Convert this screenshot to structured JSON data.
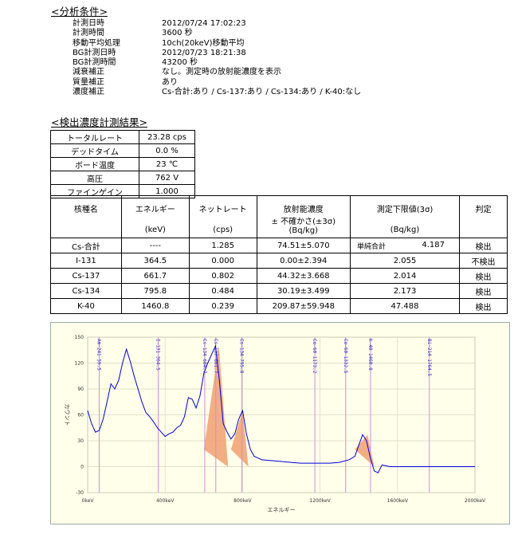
{
  "conditions": {
    "title": "<分析条件>",
    "rows": [
      {
        "label": "計測日時",
        "value": "2012/07/24 17:02:23"
      },
      {
        "label": "計測時間",
        "value": "3600 秒"
      },
      {
        "label": "移動平均処理",
        "value": "10ch(20keV)移動平均"
      },
      {
        "label": "BG計測日時",
        "value": "2012/07/23 18:21:38"
      },
      {
        "label": "BG計測時間",
        "value": "43200 秒"
      },
      {
        "label": "減衰補正",
        "value": "なし。測定時の放射能濃度を表示"
      },
      {
        "label": "質量補正",
        "value": "あり"
      },
      {
        "label": "濃度補正",
        "value": "Cs-合計:あり / Cs-137:あり / Cs-134:あり / K-40:なし"
      }
    ]
  },
  "results": {
    "title": "<検出濃度計測結果>",
    "status": [
      {
        "label": "トータルレート",
        "value": "23.28 cps"
      },
      {
        "label": "デッドタイム",
        "value": "0.0 %"
      },
      {
        "label": "ボード温度",
        "value": "23 ℃"
      },
      {
        "label": "高圧",
        "value": "762 V"
      },
      {
        "label": "ファインゲイン",
        "value": "1.000"
      }
    ],
    "headers": {
      "nuclide": "核種名",
      "energy": "エネルギー",
      "energy_unit": "(keV)",
      "netrate": "ネットレート",
      "netrate_unit": "(cps)",
      "activity": "放射能濃度",
      "activity_sub": "± 不確かさ(±3σ)",
      "activity_unit": "(Bq/kg)",
      "lld": "測定下限値(3σ)",
      "lld_unit": "(Bq/kg)",
      "judge": "判定"
    },
    "rows": [
      {
        "nuclide": "Cs-合計",
        "energy": "----",
        "netrate": "1.285",
        "activity": "74.51±5.070",
        "lld_prefix": "単純合計",
        "lld": "4.187",
        "judge": "検出"
      },
      {
        "nuclide": "I-131",
        "energy": "364.5",
        "netrate": "0.000",
        "activity": "0.00±2.394",
        "lld_prefix": "",
        "lld": "2.055",
        "judge": "不検出"
      },
      {
        "nuclide": "Cs-137",
        "energy": "661.7",
        "netrate": "0.802",
        "activity": "44.32±3.668",
        "lld_prefix": "",
        "lld": "2.014",
        "judge": "検出"
      },
      {
        "nuclide": "Cs-134",
        "energy": "795.8",
        "netrate": "0.484",
        "activity": "30.19±3.499",
        "lld_prefix": "",
        "lld": "2.173",
        "judge": "検出"
      },
      {
        "nuclide": "K-40",
        "energy": "1460.8",
        "netrate": "0.239",
        "activity": "209.87±59.948",
        "lld_prefix": "",
        "lld": "47.488",
        "judge": "検出"
      }
    ]
  },
  "chart_data": {
    "type": "line",
    "xlabel": "エネルギー",
    "ylabel": "カウント",
    "xlim": [
      0,
      2000
    ],
    "ylim": [
      -30,
      150
    ],
    "x_ticks": [
      "0keV",
      "400keV",
      "800keV",
      "1200keV",
      "1600keV",
      "2000keV"
    ],
    "y_ticks": [
      "150",
      "120",
      "90",
      "60",
      "30",
      "0",
      "-30"
    ],
    "markers": [
      {
        "label": "Am-241",
        "energy": 59.5
      },
      {
        "label": "I-131",
        "energy": 364.5
      },
      {
        "label": "Cs-134",
        "energy": 604.7
      },
      {
        "label": "Cs-137",
        "energy": 661.7
      },
      {
        "label": "Cs-134",
        "energy": 795.8
      },
      {
        "label": "Co-60",
        "energy": 1173.2
      },
      {
        "label": "Co-60",
        "energy": 1332.5
      },
      {
        "label": "K-40",
        "energy": 1460.8
      },
      {
        "label": "Bi-214",
        "energy": 1764.5
      }
    ],
    "x": [
      0,
      20,
      40,
      60,
      80,
      100,
      120,
      140,
      160,
      180,
      200,
      220,
      240,
      260,
      280,
      300,
      320,
      340,
      360,
      380,
      400,
      420,
      440,
      460,
      480,
      500,
      520,
      540,
      560,
      580,
      600,
      620,
      640,
      660,
      680,
      700,
      720,
      740,
      760,
      780,
      800,
      820,
      840,
      860,
      880,
      900,
      950,
      1000,
      1050,
      1100,
      1150,
      1200,
      1250,
      1300,
      1350,
      1380,
      1400,
      1420,
      1440,
      1460,
      1480,
      1500,
      1520,
      1540,
      1560,
      1600,
      1700,
      1800,
      1900,
      2000
    ],
    "y": [
      65,
      50,
      40,
      42,
      55,
      75,
      96,
      90,
      100,
      120,
      136,
      122,
      105,
      90,
      75,
      63,
      58,
      52,
      45,
      40,
      35,
      38,
      40,
      45,
      48,
      58,
      80,
      78,
      68,
      82,
      108,
      120,
      130,
      140,
      100,
      50,
      40,
      32,
      38,
      55,
      65,
      38,
      20,
      12,
      10,
      8,
      7,
      6,
      5,
      4,
      4,
      4,
      4,
      5,
      8,
      12,
      25,
      37,
      30,
      10,
      -5,
      -7,
      2,
      1,
      0,
      0,
      0,
      0,
      0,
      0
    ],
    "series": [
      {
        "name": "",
        "color": "#0000dd"
      }
    ],
    "peak_fill_color": "#f0a070",
    "marker_color": "#d68ad6",
    "grid": true
  }
}
